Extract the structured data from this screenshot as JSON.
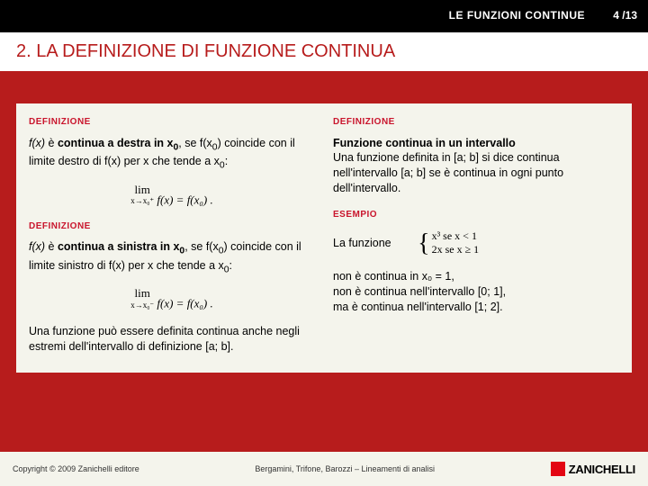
{
  "header": {
    "topic": "LE FUNZIONI CONTINUE",
    "page": "4 /13"
  },
  "title": "2. LA DEFINIZIONE DI FUNZIONE CONTINUA",
  "left": {
    "def1_label": "DEFINIZIONE",
    "def1_p1a": "f(x)",
    "def1_p1b": " è ",
    "def1_p1c": "continua a destra in x",
    "def1_p1d": "0",
    "def1_p1e": ", se f(x",
    "def1_p1f": "0",
    "def1_p1g": ") coincide con il limite destro di f(x) per x che tende a x",
    "def1_p1h": "0",
    "def1_p1i": ":",
    "formula1_lim": "lim",
    "formula1_sub": "x→x₀⁺",
    "formula1_rhs": " f(x) = f(x₀) .",
    "def2_label": "DEFINIZIONE",
    "def2_p1a": "f(x)",
    "def2_p1b": " è ",
    "def2_p1c": "continua a sinistra in x",
    "def2_p1d": "0",
    "def2_p1e": ", se f(x",
    "def2_p1f": "0",
    "def2_p1g": ") coincide con il limite sinistro di f(x) per x che tende a x",
    "def2_p1h": "0",
    "def2_p1i": ":",
    "formula2_lim": "lim",
    "formula2_sub": "x→x₀⁻",
    "formula2_rhs": " f(x) = f(x₀) .",
    "note": "Una funzione può essere definita continua anche negli estremi dell'intervallo di definizione [a; b]."
  },
  "right": {
    "def3_label": "DEFINIZIONE",
    "def3_title": "Funzione continua in un intervallo",
    "def3_body": "Una funzione definita in [a; b] si dice continua nell'intervallo [a; b] se è continua in ogni punto dell'intervallo.",
    "esempio_label": "ESEMPIO",
    "esempio_intro": "La funzione",
    "pw_row1": "x³    se x < 1",
    "pw_row2": "2x   se x ≥ 1",
    "esempio_body1": "non è continua in x₀ = 1,",
    "esempio_body2": "non è continua nell'intervallo [0; 1],",
    "esempio_body3": "ma è continua nell'intervallo [1; 2]."
  },
  "footer": {
    "copyright": "Copyright © 2009 Zanichelli editore",
    "credits": "Bergamini, Trifone, Barozzi – Lineamenti di analisi",
    "logo": "ZANICHELLI"
  }
}
